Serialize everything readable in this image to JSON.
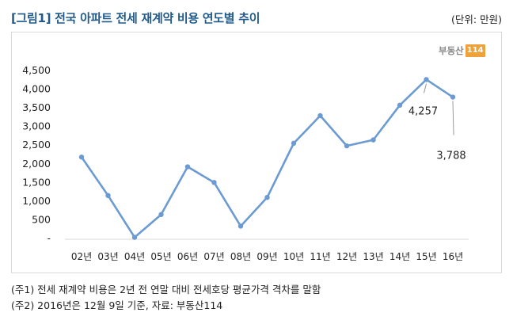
{
  "header": {
    "title": "[그림1] 전국 아파트 전세 재계약 비용 연도별 추이",
    "unit": "(단위: 만원)"
  },
  "logo": {
    "text": "부동산",
    "number": "114"
  },
  "colors": {
    "line": "#6b9bd1",
    "title": "#1f5a8a",
    "axis": "#d9d9d9"
  },
  "chart_data": {
    "type": "line",
    "categories": [
      "02년",
      "03년",
      "04년",
      "05년",
      "06년",
      "07년",
      "08년",
      "09년",
      "10년",
      "11년",
      "12년",
      "13년",
      "14년",
      "15년",
      "16년"
    ],
    "series": [
      {
        "values": [
          2180,
          1150,
          30,
          640,
          1920,
          1500,
          330,
          1100,
          2550,
          3290,
          2480,
          2640,
          3570,
          4257,
          3788
        ]
      }
    ],
    "y_ticks": [
      "-",
      "500",
      "1,000",
      "1,500",
      "2,000",
      "2,500",
      "3,000",
      "3,500",
      "4,000",
      "4,500"
    ],
    "ylim": [
      0,
      4500
    ],
    "grid": false,
    "annotations": [
      {
        "index": 13,
        "label": "4,257"
      },
      {
        "index": 14,
        "label": "3,788"
      }
    ]
  },
  "notes": [
    "(주1) 전세 재계약 비용은 2년 전 연말 대비 전세호당 평균가격 격차를 말함",
    "(주2) 2016년은 12월 9일 기준, 자료: 부동산114"
  ]
}
